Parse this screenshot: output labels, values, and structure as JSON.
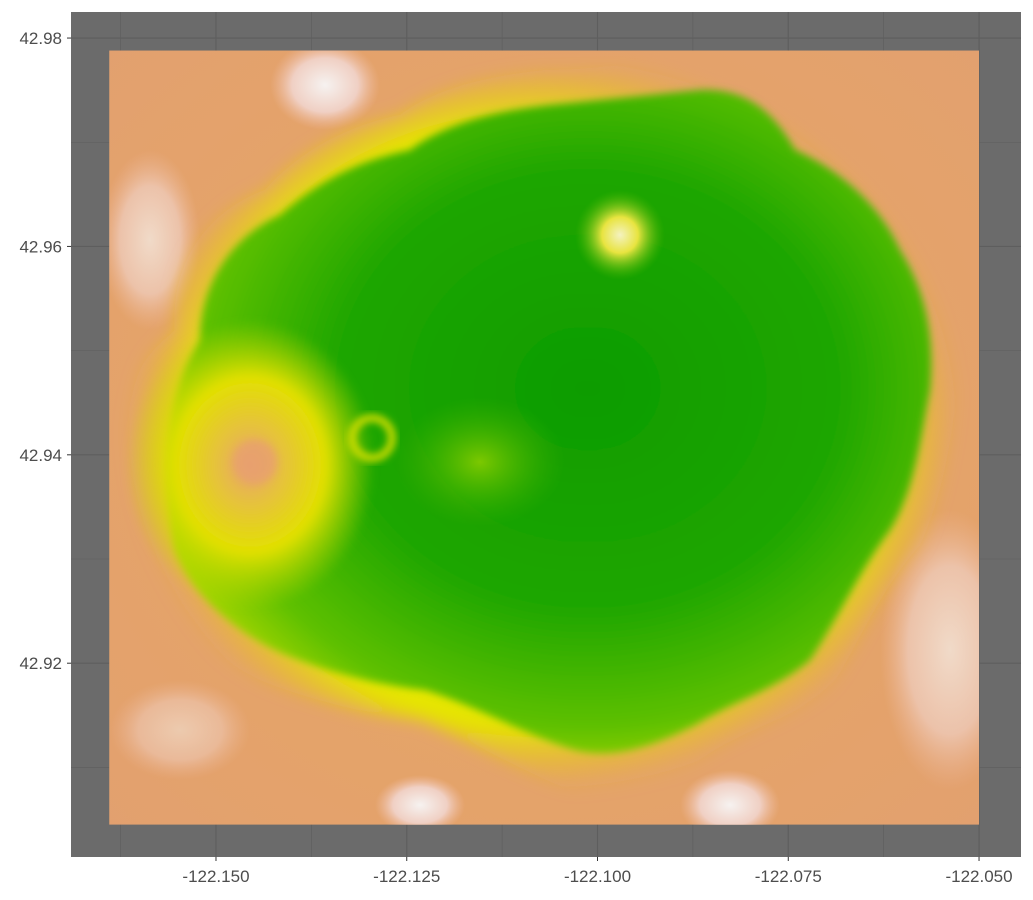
{
  "chart_data": {
    "type": "heatmap",
    "title": "",
    "xlabel": "",
    "ylabel": "",
    "xlim": [
      -122.169,
      -122.0445
    ],
    "ylim": [
      42.9014,
      42.9825
    ],
    "raster_extent": {
      "x": [
        -122.164,
        -122.05
      ],
      "y": [
        42.9045,
        42.9788
      ]
    },
    "x_ticks": [
      -122.15,
      -122.125,
      -122.1,
      -122.075,
      -122.05
    ],
    "y_ticks": [
      42.92,
      42.94,
      42.96,
      42.98
    ],
    "x_tick_labels": [
      "-122.150",
      "-122.125",
      "-122.100",
      "-122.075",
      "-122.050"
    ],
    "y_tick_labels": [
      "42.92",
      "42.94",
      "42.96",
      "42.98"
    ],
    "grid": true,
    "colormap": "terrain",
    "colors": {
      "panel_background": "#6b6b6b",
      "gridline": "#5e5e5e",
      "low": "#15a300",
      "mid": "#e6e600",
      "high": "#eeb99f",
      "peak": "#f2f2f2"
    }
  }
}
